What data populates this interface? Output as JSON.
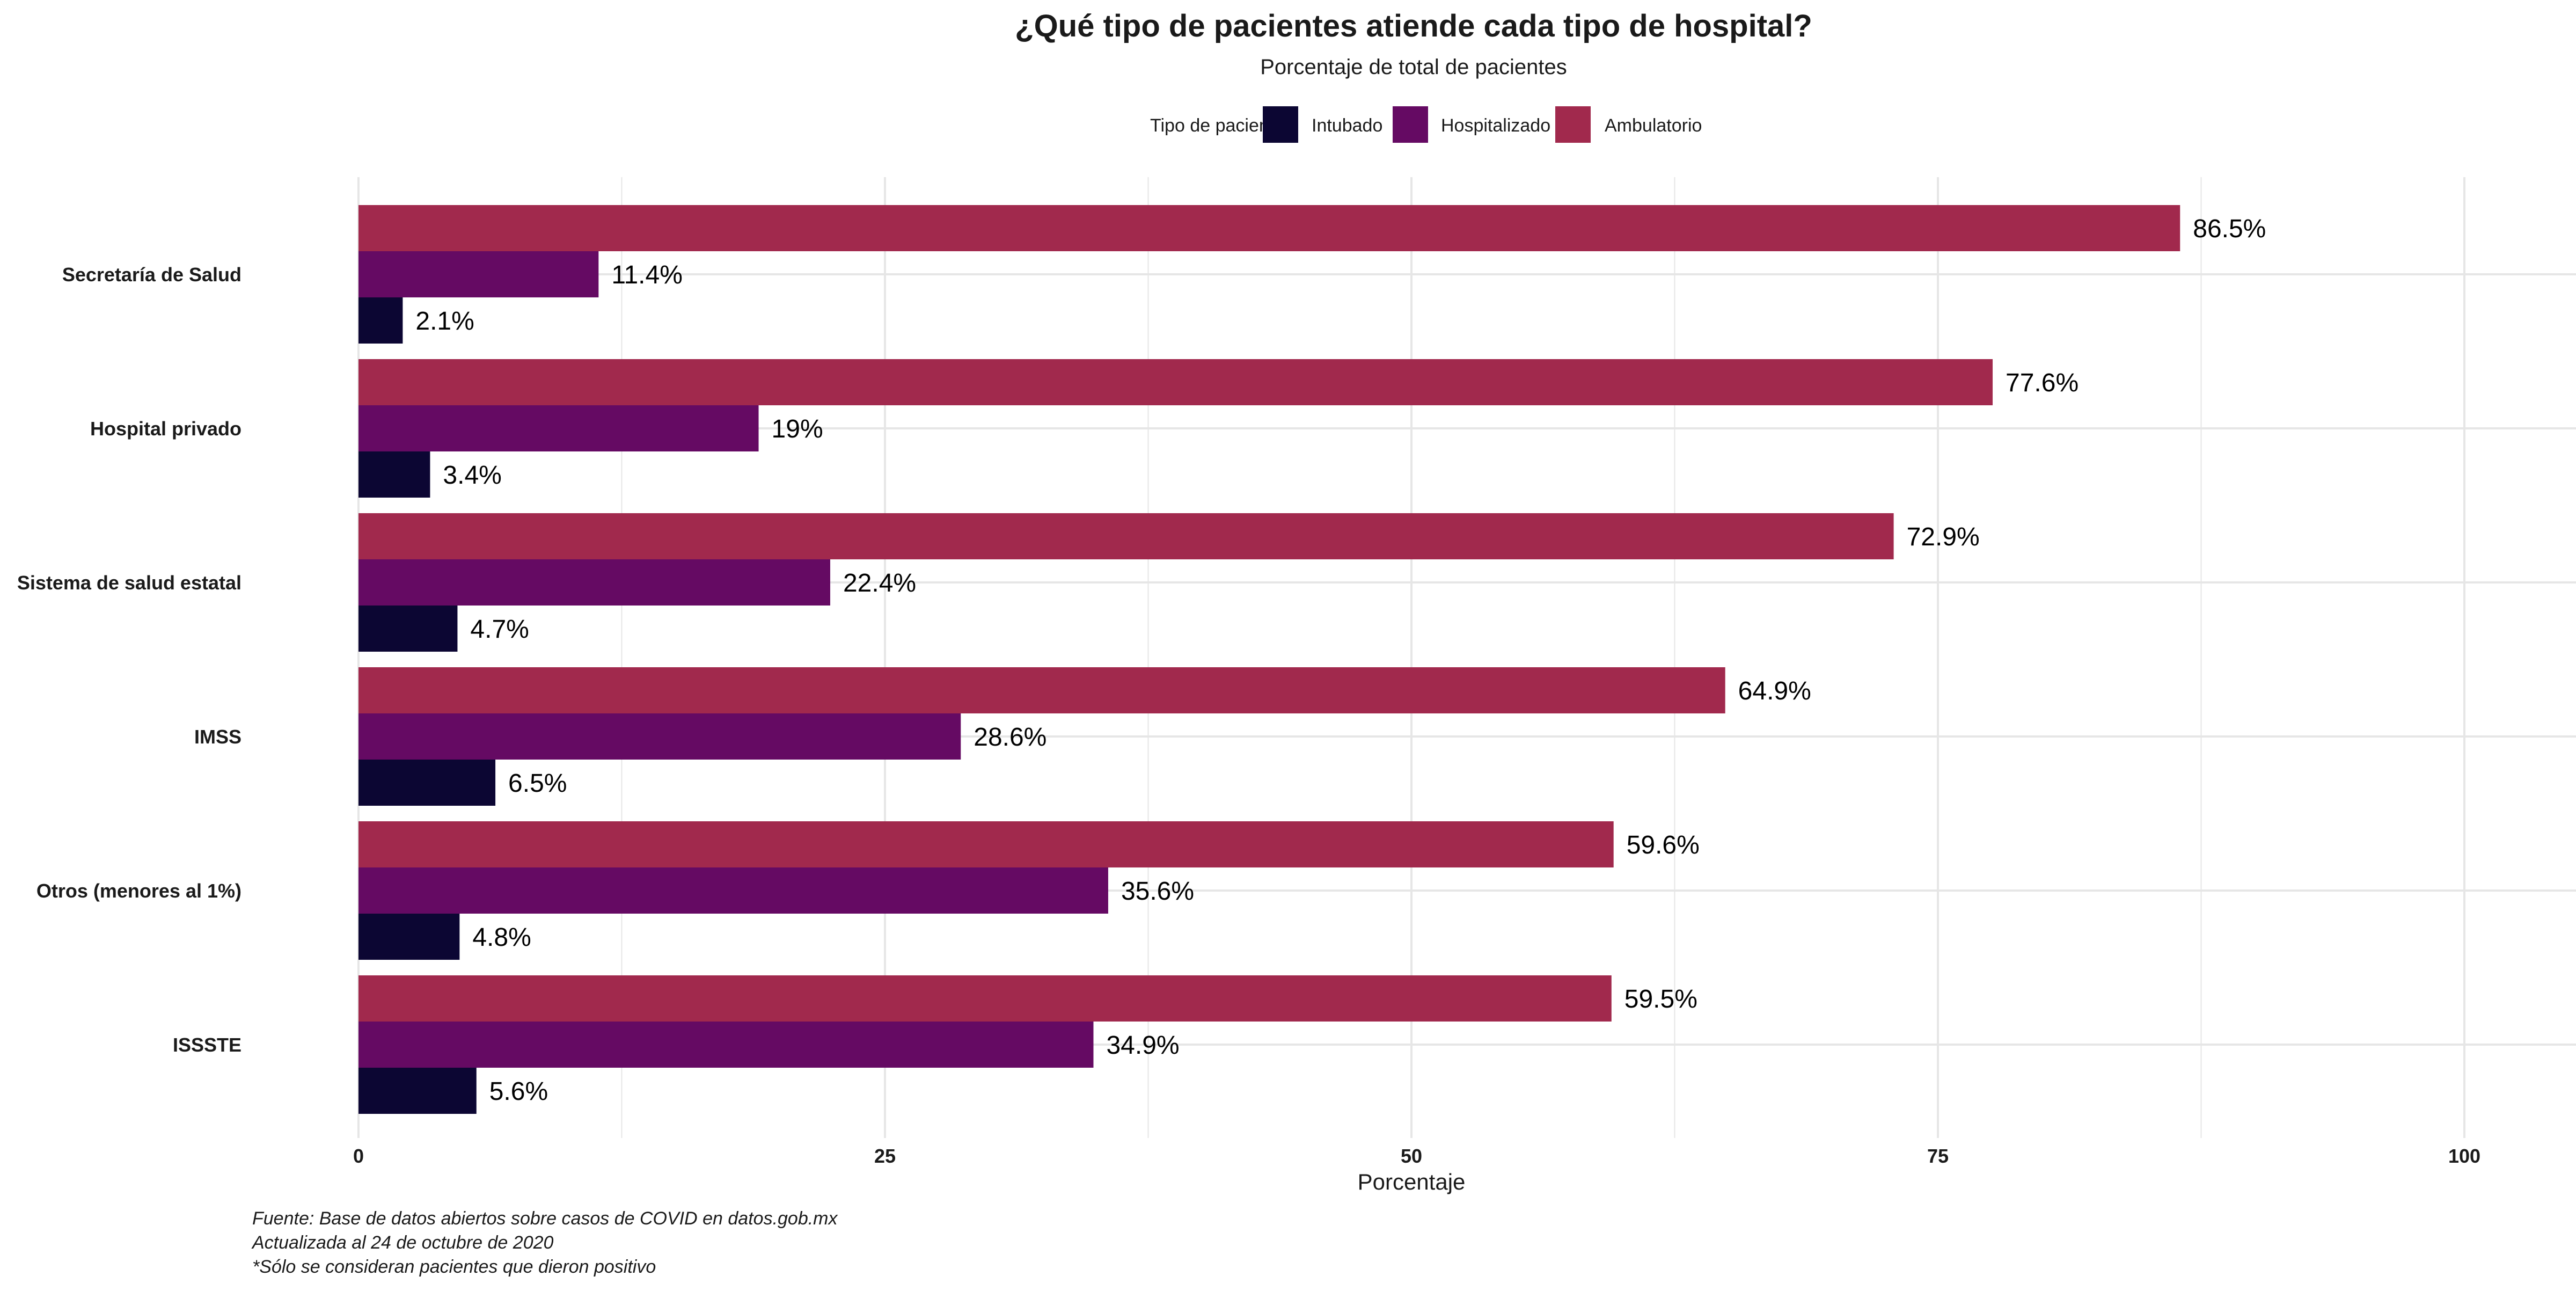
{
  "colors": {
    "intubado": "#0C0633",
    "hospitalizado": "#650A63",
    "ambulatorio": "#A1294D",
    "grid": "#E6E6E6",
    "text": "#1A1A1A"
  },
  "chart_data": {
    "type": "bar",
    "orientation": "horizontal",
    "title": "¿Qué tipo de pacientes atiende cada tipo de hospital?",
    "subtitle": "Porcentaje de total de pacientes",
    "xlabel": "Porcentaje",
    "ylabel": "",
    "xlim": [
      0,
      105
    ],
    "xticks": [
      0,
      25,
      50,
      75,
      100
    ],
    "grid": true,
    "legend": {
      "position": "top",
      "title": "Tipo de paciente",
      "entries": [
        "Intubado",
        "Hospitalizado",
        "Ambulatorio"
      ]
    },
    "categories": [
      "Secretaría de Salud",
      "Hospital privado",
      "Sistema de salud estatal",
      "IMSS",
      "Otros (menores al 1%)",
      "ISSSTE"
    ],
    "series": [
      {
        "name": "Ambulatorio",
        "values": [
          86.5,
          77.6,
          72.9,
          64.9,
          59.6,
          59.5
        ],
        "labels": [
          "86.5%",
          "77.6%",
          "72.9%",
          "64.9%",
          "59.6%",
          "59.5%"
        ]
      },
      {
        "name": "Hospitalizado",
        "values": [
          11.4,
          19,
          22.4,
          28.6,
          35.6,
          34.9
        ],
        "labels": [
          "11.4%",
          "19%",
          "22.4%",
          "28.6%",
          "35.6%",
          "34.9%"
        ]
      },
      {
        "name": "Intubado",
        "values": [
          2.1,
          3.4,
          4.7,
          6.5,
          4.8,
          5.6
        ],
        "labels": [
          "2.1%",
          "3.4%",
          "4.7%",
          "6.5%",
          "4.8%",
          "5.6%"
        ]
      }
    ],
    "caption": [
      "Fuente: Base de datos abiertos sobre casos de COVID en datos.gob.mx",
      "Actualizada al 24 de octubre de 2020",
      "*Sólo se consideran pacientes que dieron positivo"
    ]
  }
}
